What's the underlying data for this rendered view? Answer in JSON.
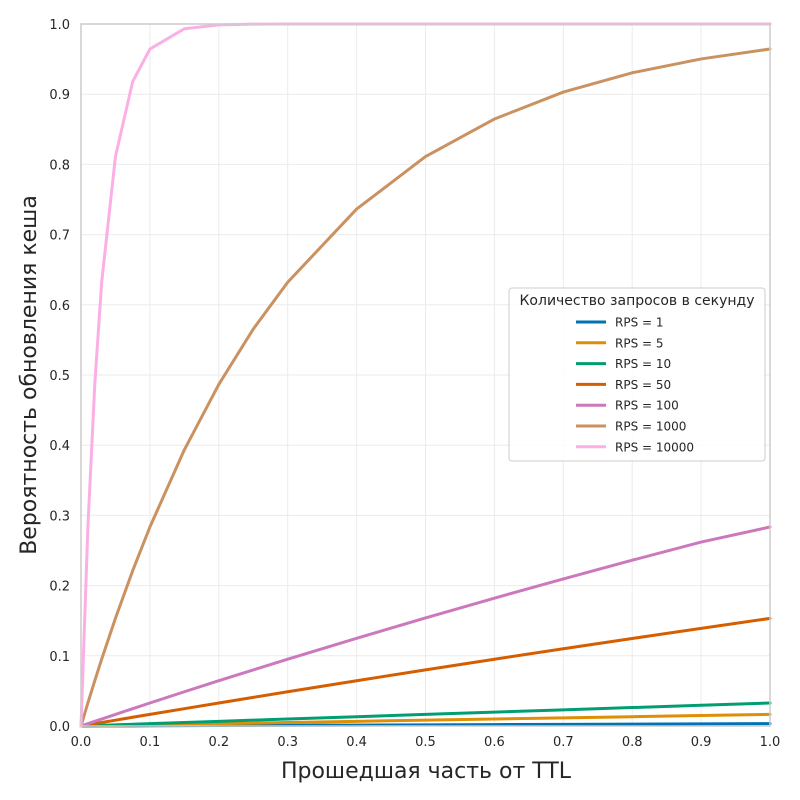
{
  "chart_data": {
    "type": "line",
    "title": "",
    "xlabel": "Прошедшая часть от TTL",
    "ylabel": "Вероятность обновления кеша",
    "xlim": [
      0,
      1
    ],
    "ylim": [
      0,
      1
    ],
    "grid": true,
    "xticks": [
      0.0,
      0.1,
      0.2,
      0.3,
      0.4,
      0.5,
      0.6,
      0.7,
      0.8,
      0.9,
      1.0
    ],
    "xtick_labels": [
      "0.0",
      "0.1",
      "0.2",
      "0.3",
      "0.4",
      "0.5",
      "0.6",
      "0.7",
      "0.8",
      "0.9",
      "1.0"
    ],
    "yticks": [
      0.0,
      0.1,
      0.2,
      0.3,
      0.4,
      0.5,
      0.6,
      0.7,
      0.8,
      0.9,
      1.0
    ],
    "ytick_labels": [
      "0.0",
      "0.1",
      "0.2",
      "0.3",
      "0.4",
      "0.5",
      "0.6",
      "0.7",
      "0.8",
      "0.9",
      "1.0"
    ],
    "legend": {
      "title": "Количество запросов в секунду",
      "placement": "center-right"
    },
    "x": [
      0.0,
      0.01,
      0.02,
      0.03,
      0.05,
      0.075,
      0.1,
      0.15,
      0.2,
      0.25,
      0.3,
      0.4,
      0.5,
      0.6,
      0.7,
      0.8,
      0.9,
      1.0
    ],
    "series": [
      {
        "name": "RPS = 1",
        "color": "#0173b2",
        "values": [
          0,
          3e-05,
          7e-05,
          0.0001,
          0.00017,
          0.00025,
          0.00033,
          0.0005,
          0.00067,
          0.00083,
          0.001,
          0.00133,
          0.00167,
          0.002,
          0.00233,
          0.00266,
          0.003,
          0.00333
        ]
      },
      {
        "name": "RPS = 5",
        "color": "#de8f05",
        "values": [
          0,
          0.00017,
          0.00033,
          0.0005,
          0.00083,
          0.00125,
          0.00167,
          0.0025,
          0.00333,
          0.00416,
          0.005,
          0.00664,
          0.0083,
          0.00995,
          0.0116,
          0.01324,
          0.01488,
          0.01652
        ]
      },
      {
        "name": "RPS = 10",
        "color": "#029e73",
        "values": [
          0,
          0.00033,
          0.00067,
          0.001,
          0.00167,
          0.0025,
          0.00333,
          0.00499,
          0.00664,
          0.0083,
          0.00995,
          0.01324,
          0.01652,
          0.01979,
          0.02305,
          0.02629,
          0.02952,
          0.03274
        ]
      },
      {
        "name": "RPS = 50",
        "color": "#d55e00",
        "values": [
          0,
          0.00167,
          0.00333,
          0.005,
          0.0083,
          0.01242,
          0.01652,
          0.02469,
          0.03278,
          0.04082,
          0.04877,
          0.06449,
          0.07993,
          0.09511,
          0.11003,
          0.12469,
          0.1391,
          0.15327
        ]
      },
      {
        "name": "RPS = 100",
        "color": "#cc78bc",
        "values": [
          0,
          0.00333,
          0.00664,
          0.00995,
          0.01652,
          0.02469,
          0.03278,
          0.04877,
          0.06449,
          0.07993,
          0.09516,
          0.12495,
          0.15391,
          0.18209,
          0.20953,
          0.23614,
          0.26203,
          0.28347
        ]
      },
      {
        "name": "RPS = 1000",
        "color": "#ca9161",
        "values": [
          0,
          0.03278,
          0.06449,
          0.09516,
          0.15351,
          0.2212,
          0.28347,
          0.39347,
          0.48658,
          0.5654,
          0.63212,
          0.7364,
          0.81112,
          0.86466,
          0.90303,
          0.93051,
          0.95021,
          0.96433
        ]
      },
      {
        "name": "RPS = 10000",
        "color": "#fbafe4",
        "values": [
          0,
          0.28347,
          0.48658,
          0.63212,
          0.81112,
          0.91792,
          0.96433,
          0.99326,
          0.99873,
          0.99976,
          0.99995,
          1.0,
          1.0,
          1.0,
          1.0,
          1.0,
          1.0,
          1.0
        ]
      }
    ]
  }
}
